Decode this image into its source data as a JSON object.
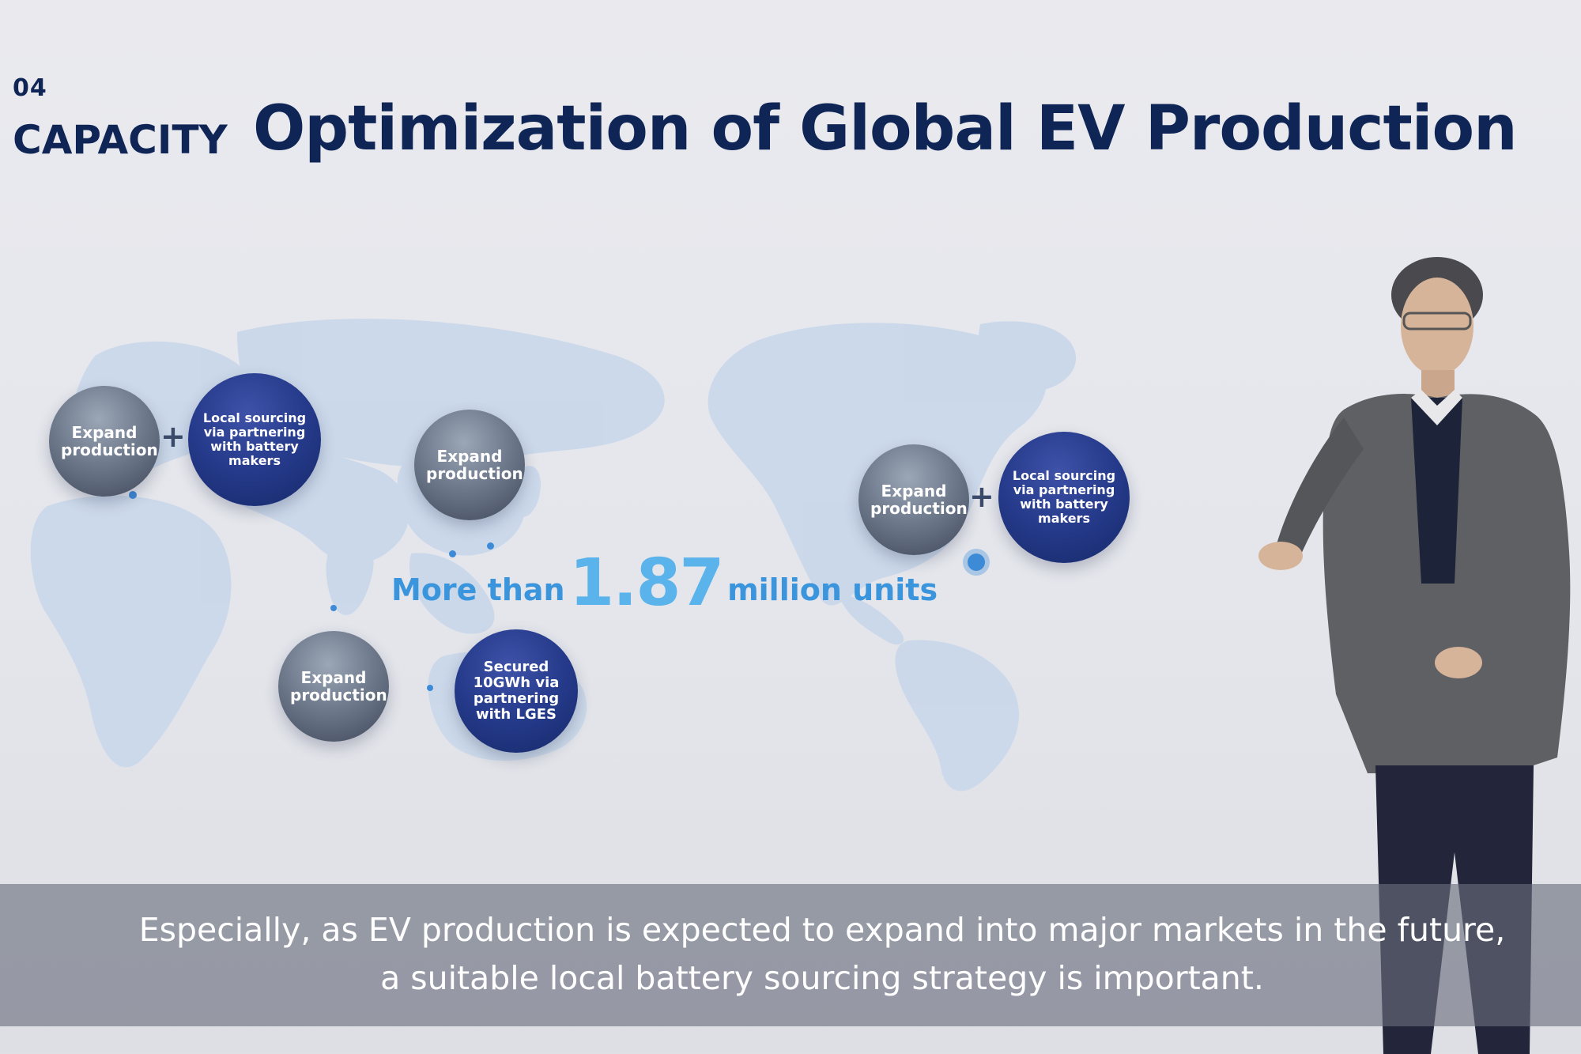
{
  "header": {
    "section_number": "04",
    "section_label": "CAPACITY",
    "title": "Optimization of Global EV Production"
  },
  "bubbles": {
    "europe_expand": "Expand production",
    "europe_sourcing": "Local sourcing via partnering with battery makers",
    "asia_expand": "Expand production",
    "southeast_asia_expand": "Expand production",
    "southeast_asia_secured": "Secured 10GWh via partnering with LGES",
    "america_expand": "Expand production",
    "america_sourcing": "Local sourcing via partnering with battery makers"
  },
  "stat": {
    "prefix": "More than",
    "value": "1.87",
    "suffix": "million units"
  },
  "caption": {
    "line1": "Especially, as EV production is expected to expand into major markets in the future,",
    "line2": "a suitable local battery sourcing strategy is important."
  },
  "colors": {
    "title": "#0f2556",
    "stat_blue": "#3a95dd",
    "map": "#c9d7ea",
    "bubble_blue": "#253a8a",
    "bubble_gray": "#6f7b8d"
  }
}
